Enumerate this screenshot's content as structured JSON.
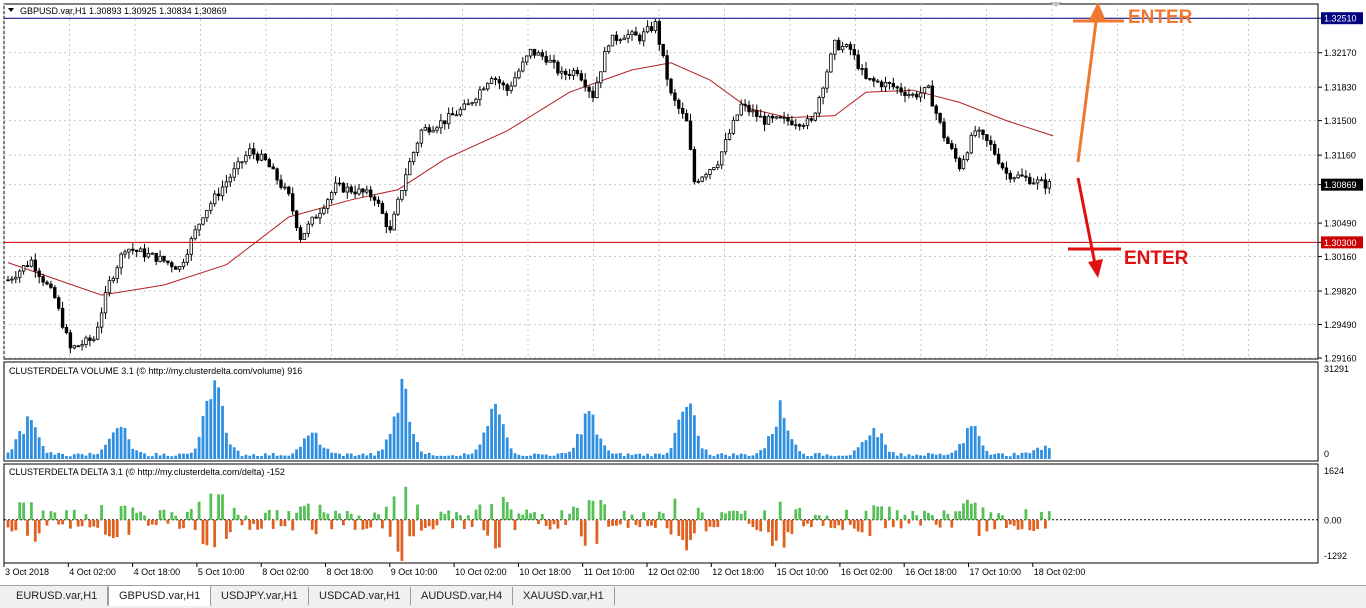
{
  "header": {
    "symbol_info": "GBPUSD.var,H1  1.30893 1.30925 1.30834 1.30869"
  },
  "indicators": {
    "volume_label": "CLUSTERDELTA VOLUME 3.1 (© http://my.clusterdelta.com/volume) 916",
    "delta_label": "CLUSTERDELTA DELTA 3.1 (© http://my.clusterdelta.com/delta) -152"
  },
  "annotations": {
    "enter_up": "ENTER",
    "enter_down": "ENTER"
  },
  "colors": {
    "bull_volume": "#2f8fe0",
    "delta_pos": "#55c055",
    "delta_neg": "#e06020",
    "ma_line": "#b02020",
    "resistance_line": "#000080",
    "support_line": "#cc0000",
    "enter_up_arrow": "#f07830",
    "enter_down_arrow": "#e01010"
  },
  "tabs": [
    {
      "label": "EURUSD.var,H1",
      "active": false
    },
    {
      "label": "GBPUSD.var,H1",
      "active": true
    },
    {
      "label": "USDJPY.var,H1",
      "active": false
    },
    {
      "label": "USDCAD.var,H1",
      "active": false
    },
    {
      "label": "AUDUSD.var,H4",
      "active": false
    },
    {
      "label": "XAUUSD.var,H1",
      "active": false
    }
  ],
  "chart_data": {
    "type": "candlestick",
    "symbol": "GBPUSD.var",
    "timeframe": "H1",
    "price_axis": {
      "ylim": [
        1.2915,
        1.3265
      ],
      "ticks": [
        "1.32510",
        "1.32170",
        "1.31830",
        "1.31500",
        "1.31160",
        "1.30869",
        "1.30490",
        "1.30300",
        "1.30160",
        "1.29820",
        "1.29490",
        "1.29160"
      ],
      "current_price": "1.30869"
    },
    "horizontal_levels": [
      {
        "label": "1.32510",
        "value": 1.3251
      },
      {
        "label": "1.30300",
        "value": 1.303
      }
    ],
    "x_tick_labels": [
      "3 Oct 2018",
      "4 Oct 02:00",
      "4 Oct 18:00",
      "5 Oct 10:00",
      "8 Oct 02:00",
      "8 Oct 18:00",
      "9 Oct 10:00",
      "10 Oct 02:00",
      "10 Oct 18:00",
      "11 Oct 10:00",
      "12 Oct 02:00",
      "12 Oct 18:00",
      "15 Oct 10:00",
      "16 Oct 02:00",
      "16 Oct 18:00",
      "17 Oct 10:00",
      "18 Oct 02:00"
    ],
    "close_path": [
      [
        0,
        1.2993
      ],
      [
        6,
        1.3012
      ],
      [
        12,
        1.2975
      ],
      [
        16,
        1.2925
      ],
      [
        22,
        1.2935
      ],
      [
        26,
        1.299
      ],
      [
        30,
        1.3025
      ],
      [
        38,
        1.3015
      ],
      [
        44,
        1.3005
      ],
      [
        50,
        1.3058
      ],
      [
        56,
        1.309
      ],
      [
        62,
        1.312
      ],
      [
        66,
        1.311
      ],
      [
        72,
        1.3075
      ],
      [
        75,
        1.3035
      ],
      [
        80,
        1.3062
      ],
      [
        84,
        1.3085
      ],
      [
        90,
        1.308
      ],
      [
        94,
        1.3075
      ],
      [
        98,
        1.304
      ],
      [
        102,
        1.3098
      ],
      [
        106,
        1.314
      ],
      [
        112,
        1.315
      ],
      [
        118,
        1.3165
      ],
      [
        124,
        1.3195
      ],
      [
        128,
        1.318
      ],
      [
        134,
        1.3218
      ],
      [
        138,
        1.3212
      ],
      [
        142,
        1.3195
      ],
      [
        146,
        1.32
      ],
      [
        150,
        1.3175
      ],
      [
        154,
        1.3228
      ],
      [
        158,
        1.3235
      ],
      [
        162,
        1.3232
      ],
      [
        166,
        1.3245
      ],
      [
        170,
        1.3175
      ],
      [
        174,
        1.3148
      ],
      [
        176,
        1.309
      ],
      [
        182,
        1.311
      ],
      [
        188,
        1.3165
      ],
      [
        194,
        1.315
      ],
      [
        200,
        1.315
      ],
      [
        206,
        1.3148
      ],
      [
        212,
        1.3225
      ],
      [
        216,
        1.322
      ],
      [
        220,
        1.319
      ],
      [
        226,
        1.3185
      ],
      [
        232,
        1.3175
      ],
      [
        236,
        1.318
      ],
      [
        240,
        1.3135
      ],
      [
        244,
        1.3105
      ],
      [
        248,
        1.314
      ],
      [
        252,
        1.3125
      ],
      [
        256,
        1.3098
      ],
      [
        262,
        1.3092
      ],
      [
        266,
        1.3087
      ]
    ],
    "moving_average": [
      [
        0,
        1.301
      ],
      [
        24,
        1.2978
      ],
      [
        40,
        1.2988
      ],
      [
        56,
        1.3008
      ],
      [
        72,
        1.3055
      ],
      [
        88,
        1.3072
      ],
      [
        100,
        1.3082
      ],
      [
        112,
        1.3112
      ],
      [
        128,
        1.314
      ],
      [
        144,
        1.3178
      ],
      [
        160,
        1.32
      ],
      [
        170,
        1.3207
      ],
      [
        180,
        1.319
      ],
      [
        190,
        1.3162
      ],
      [
        200,
        1.3153
      ],
      [
        212,
        1.3155
      ],
      [
        220,
        1.3178
      ],
      [
        232,
        1.318
      ],
      [
        244,
        1.3168
      ],
      [
        256,
        1.315
      ],
      [
        268,
        1.3135
      ]
    ],
    "volume_axis": {
      "ylim": [
        0,
        31291
      ],
      "ticks": [
        "31291",
        "0"
      ]
    },
    "volume_bursts": [
      {
        "center": 5,
        "peak": 14000
      },
      {
        "center": 28,
        "peak": 13500
      },
      {
        "center": 53,
        "peak": 31291
      },
      {
        "center": 78,
        "peak": 8500
      },
      {
        "center": 101,
        "peak": 28000
      },
      {
        "center": 125,
        "peak": 17500
      },
      {
        "center": 149,
        "peak": 17000
      },
      {
        "center": 174,
        "peak": 19500
      },
      {
        "center": 198,
        "peak": 19000
      },
      {
        "center": 222,
        "peak": 10500
      },
      {
        "center": 247,
        "peak": 11000
      },
      {
        "center": 266,
        "peak": 4000
      }
    ],
    "delta_axis": {
      "ylim": [
        -1292,
        1624
      ],
      "ticks": [
        "1624",
        "0.00",
        "-1292"
      ],
      "zero_label": "0.00"
    }
  }
}
